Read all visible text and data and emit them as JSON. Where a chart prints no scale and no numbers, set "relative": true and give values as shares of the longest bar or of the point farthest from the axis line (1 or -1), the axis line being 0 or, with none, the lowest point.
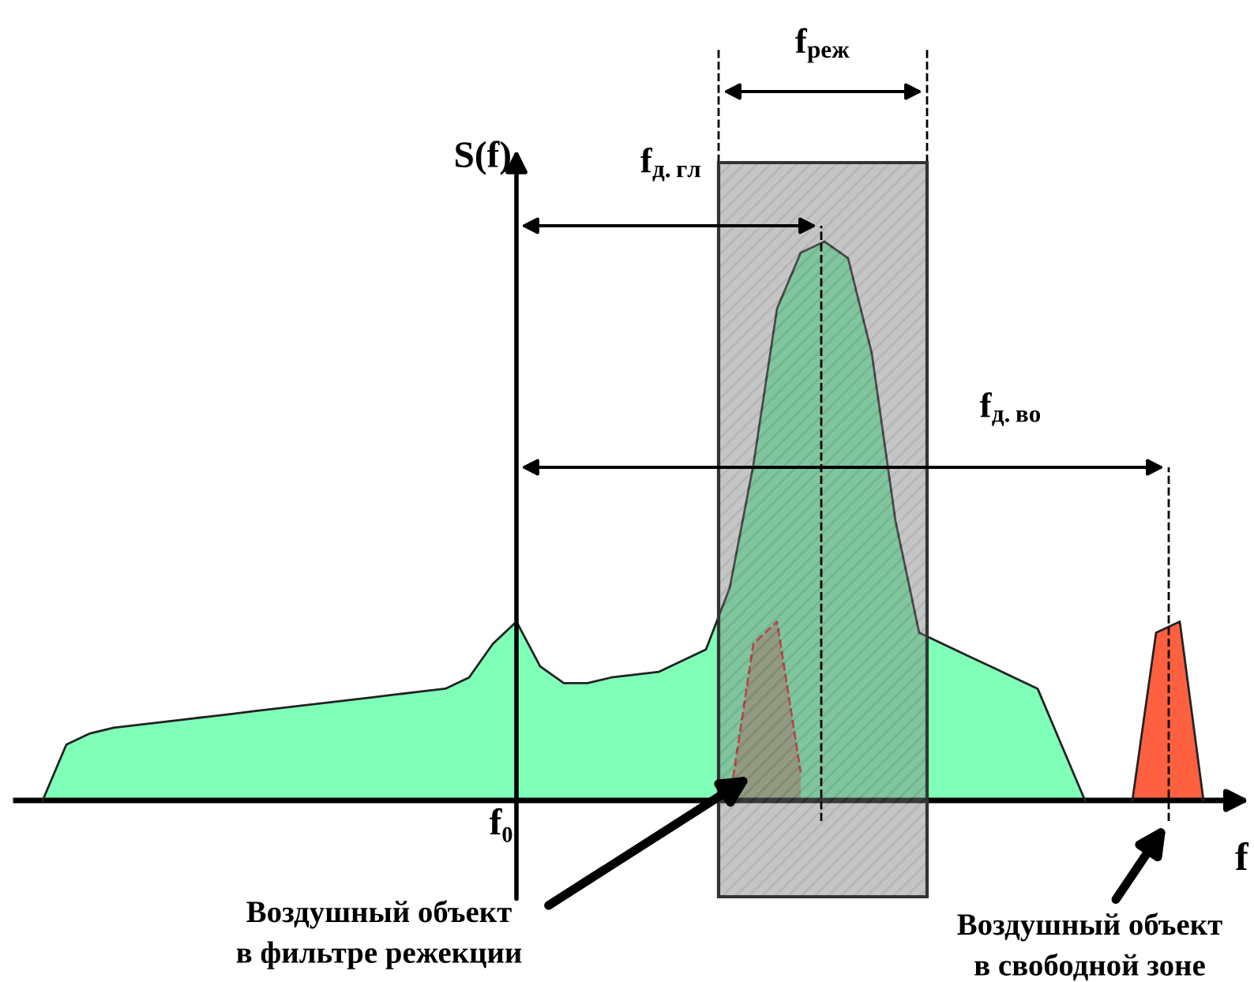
{
  "chart_data": {
    "type": "area",
    "relative": true,
    "ylabel": "S(f)",
    "xlabel": "f",
    "categories": [
      null,
      null,
      null,
      null,
      null,
      null,
      null,
      null,
      null,
      null,
      null,
      null,
      null,
      null,
      null,
      null,
      null,
      null,
      null,
      null,
      null,
      null,
      null,
      null,
      null,
      null,
      null,
      null,
      null,
      null,
      null,
      null,
      null,
      null,
      null,
      null,
      null,
      null,
      null,
      null,
      null,
      null,
      null,
      null,
      null,
      null,
      null,
      null,
      null,
      null,
      null
    ],
    "series": [
      {
        "color": "#80ffb8",
        "values": [
          0,
          0.1,
          0.12,
          0.13,
          0.135,
          0.14,
          0.145,
          0.15,
          0.155,
          0.16,
          0.165,
          0.17,
          0.175,
          0.18,
          0.185,
          0.19,
          0.195,
          0.2,
          0.22,
          0.28,
          0.32,
          0.24,
          0.21,
          0.21,
          0.22,
          0.225,
          0.23,
          0.25,
          0.27,
          0.38,
          0.6,
          0.88,
          0.98,
          1.0,
          0.97,
          0.8,
          0.5,
          0.3,
          0.28,
          0.26,
          0.24,
          0.22,
          0.2,
          0.1,
          0,
          null,
          null,
          null,
          null,
          null,
          null
        ]
      },
      {
        "color": "#e02020",
        "line_style": "dashed",
        "values": [
          null,
          null,
          null,
          null,
          null,
          null,
          null,
          null,
          null,
          null,
          null,
          null,
          null,
          null,
          null,
          null,
          null,
          null,
          null,
          null,
          null,
          null,
          null,
          null,
          null,
          null,
          null,
          null,
          null,
          0,
          0.28,
          0.32,
          0.05,
          null,
          null,
          null,
          null,
          null,
          null,
          null,
          null,
          null,
          null,
          null,
          null,
          null,
          null,
          null,
          null,
          null,
          null
        ]
      },
      {
        "color": "#ff6040",
        "values": [
          null,
          null,
          null,
          null,
          null,
          null,
          null,
          null,
          null,
          null,
          null,
          null,
          null,
          null,
          null,
          null,
          null,
          null,
          null,
          null,
          null,
          null,
          null,
          null,
          null,
          null,
          null,
          null,
          null,
          null,
          null,
          null,
          null,
          null,
          null,
          null,
          null,
          null,
          null,
          null,
          null,
          null,
          null,
          null,
          null,
          null,
          0,
          0.3,
          0.32,
          0,
          null
        ]
      }
    ],
    "annotations": [
      "f₀",
      "f$_{реж}$",
      "f$_{д.гл}$",
      "f$_{д.во}$",
      "Воздушный объект\nв фильтре режекции",
      "Воздушный объект\nв свободной зоне"
    ]
  }
}
